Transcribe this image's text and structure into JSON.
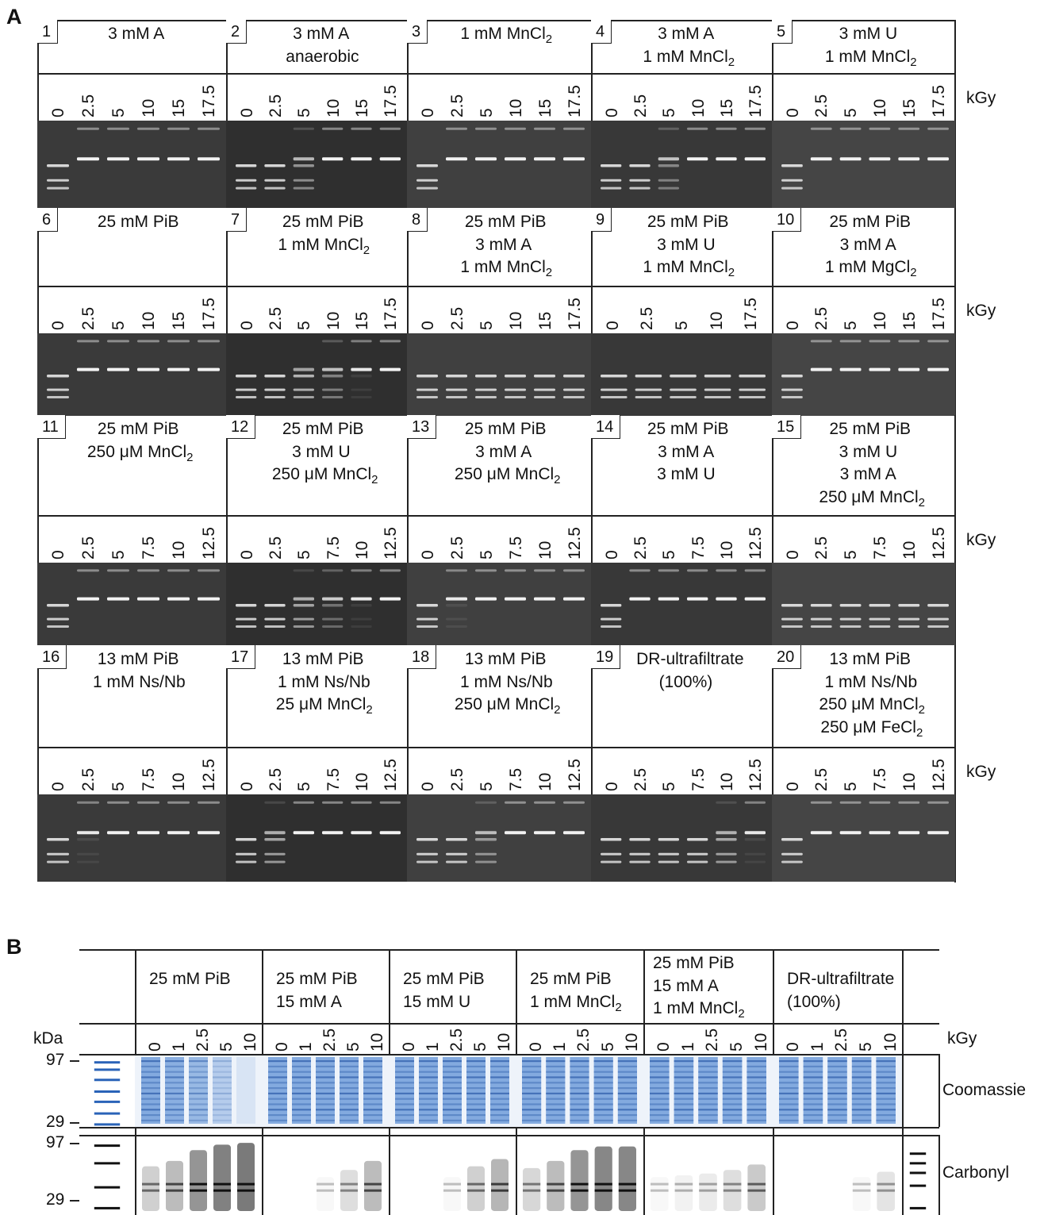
{
  "figure": {
    "panelA_label": "A",
    "panelB_label": "B",
    "unit_kgy": "kGy"
  },
  "panelA": {
    "rows": [
      {
        "doses": [
          "0",
          "2.5",
          "5",
          "10",
          "15",
          "17.5"
        ],
        "cells": [
          {
            "num": "1",
            "lines": [
              "3 mM A"
            ],
            "pattern": [
              0,
              1,
              1,
              1,
              1,
              1
            ]
          },
          {
            "num": "2",
            "lines": [
              "3 mM A",
              "anaerobic"
            ],
            "pattern": [
              0,
              0,
              0.4,
              1,
              1,
              1
            ]
          },
          {
            "num": "3",
            "lines": [
              "1 mM MnCl₂"
            ],
            "pattern": [
              0,
              1,
              1,
              1,
              1,
              1
            ]
          },
          {
            "num": "4",
            "lines": [
              "3 mM A",
              "1 mM MnCl₂"
            ],
            "pattern": [
              0,
              0,
              0.5,
              1,
              1,
              1
            ]
          },
          {
            "num": "5",
            "lines": [
              "3 mM U",
              "1 mM MnCl₂"
            ],
            "pattern": [
              0,
              1,
              1,
              1,
              1,
              1
            ]
          }
        ]
      },
      {
        "doses": [
          "0",
          "2.5",
          "5",
          "10",
          "15",
          "17.5"
        ],
        "cells": [
          {
            "num": "6",
            "lines": [
              "25 mM PiB"
            ],
            "pattern": [
              0,
              1,
              1,
              1,
              1,
              1
            ]
          },
          {
            "num": "7",
            "lines": [
              "25 mM PiB",
              "1 mM MnCl₂"
            ],
            "pattern": [
              0,
              0,
              0.2,
              0.5,
              0.9,
              1
            ]
          },
          {
            "num": "8",
            "lines": [
              "25 mM PiB",
              "3 mM A",
              "1 mM MnCl₂"
            ],
            "pattern": [
              0,
              0,
              0,
              0,
              0,
              0
            ]
          },
          {
            "num": "9",
            "lines": [
              "25 mM PiB",
              "3 mM U",
              "1 mM MnCl₂"
            ],
            "pattern": [
              0,
              0,
              0,
              0,
              0
            ],
            "doses": [
              "0",
              "2.5",
              "5",
              "10",
              "17.5"
            ]
          },
          {
            "num": "10",
            "lines": [
              "25 mM PiB",
              "3 mM A",
              "1 mM MgCl₂"
            ],
            "pattern": [
              0,
              1,
              1,
              1,
              1,
              1
            ]
          }
        ]
      },
      {
        "doses": [
          "0",
          "2.5",
          "5",
          "7.5",
          "10",
          "12.5"
        ],
        "cells": [
          {
            "num": "11",
            "lines": [
              "25 mM PiB",
              "250 μM MnCl₂"
            ],
            "pattern": [
              0,
              1,
              1,
              1,
              1,
              1
            ]
          },
          {
            "num": "12",
            "lines": [
              "25 mM PiB",
              "3 mM U",
              "250 μM MnCl₂"
            ],
            "pattern": [
              0,
              0,
              0.3,
              0.6,
              0.9,
              1
            ]
          },
          {
            "num": "13",
            "lines": [
              "25 mM PiB",
              "3 mM A",
              "250 μM MnCl₂"
            ],
            "pattern": [
              0,
              0.9,
              1,
              1,
              1,
              1
            ]
          },
          {
            "num": "14",
            "lines": [
              "25 mM PiB",
              "3 mM A",
              "3 mM U"
            ],
            "pattern": [
              0,
              1,
              1,
              1,
              1,
              1
            ]
          },
          {
            "num": "15",
            "lines": [
              "25 mM PiB",
              "3 mM U",
              "3 mM A",
              "250 μM MnCl₂"
            ],
            "pattern": [
              0,
              0,
              0,
              0,
              0,
              0
            ]
          }
        ]
      },
      {
        "doses": [
          "0",
          "2.5",
          "5",
          "7.5",
          "10",
          "12.5"
        ],
        "cells": [
          {
            "num": "16",
            "lines": [
              "13 mM PiB",
              "1 mM Ns/Nb"
            ],
            "pattern": [
              0,
              0.9,
              1,
              1,
              1,
              1
            ]
          },
          {
            "num": "17",
            "lines": [
              "13 mM PiB",
              "1 mM Ns/Nb",
              "25 μM MnCl₂"
            ],
            "pattern": [
              0,
              0.3,
              1,
              1,
              1,
              1
            ]
          },
          {
            "num": "18",
            "lines": [
              "13 mM PiB",
              "1 mM Ns/Nb",
              "250 μM MnCl₂"
            ],
            "pattern": [
              0,
              0,
              0.4,
              1,
              1,
              1
            ]
          },
          {
            "num": "19",
            "lines": [
              "DR-ultrafiltrate",
              "(100%)"
            ],
            "pattern": [
              0,
              0,
              0,
              0,
              0.3,
              0.9
            ]
          },
          {
            "num": "20",
            "lines": [
              "13 mM PiB",
              "1 mM Ns/Nb",
              "250 μM MnCl₂",
              "250 μM FeCl₂"
            ],
            "pattern": [
              0,
              1,
              1,
              1,
              1,
              1
            ]
          }
        ]
      }
    ]
  },
  "panelB": {
    "kda_label": "kDa",
    "kda_marks": [
      "97",
      "29",
      "97",
      "29"
    ],
    "row_labels": [
      "Coomassie",
      "Carbonyl"
    ],
    "groups": [
      {
        "lines": [
          "25 mM PiB"
        ],
        "doses": [
          "0",
          "1",
          "2.5",
          "5",
          "10"
        ],
        "carbonyl": [
          0.35,
          0.5,
          0.8,
          0.95,
          1
        ]
      },
      {
        "lines": [
          "25 mM PiB",
          "15 mM A"
        ],
        "doses": [
          "0",
          "1",
          "2.5",
          "5",
          "10"
        ],
        "carbonyl": [
          0,
          0,
          0.05,
          0.25,
          0.5
        ]
      },
      {
        "lines": [
          "25 mM PiB",
          "15 mM U"
        ],
        "doses": [
          "0",
          "1",
          "2.5",
          "5",
          "10"
        ],
        "carbonyl": [
          0,
          0,
          0.05,
          0.35,
          0.55
        ]
      },
      {
        "lines": [
          "25 mM PiB",
          "1 mM MnCl₂"
        ],
        "doses": [
          "0",
          "1",
          "2.5",
          "5",
          "10"
        ],
        "carbonyl": [
          0.3,
          0.5,
          0.8,
          0.9,
          0.9
        ]
      },
      {
        "lines": [
          "25 mM PiB",
          "15 mM A",
          "1 mM MnCl₂"
        ],
        "doses": [
          "0",
          "1",
          "2.5",
          "5",
          "10"
        ],
        "carbonyl": [
          0.05,
          0.1,
          0.15,
          0.25,
          0.4
        ]
      },
      {
        "lines": [
          "DR-ultrafiltrate",
          "(100%)"
        ],
        "doses": [
          "0",
          "1",
          "2.5",
          "5",
          "10"
        ],
        "carbonyl": [
          0,
          0,
          0,
          0.05,
          0.2
        ]
      }
    ]
  }
}
